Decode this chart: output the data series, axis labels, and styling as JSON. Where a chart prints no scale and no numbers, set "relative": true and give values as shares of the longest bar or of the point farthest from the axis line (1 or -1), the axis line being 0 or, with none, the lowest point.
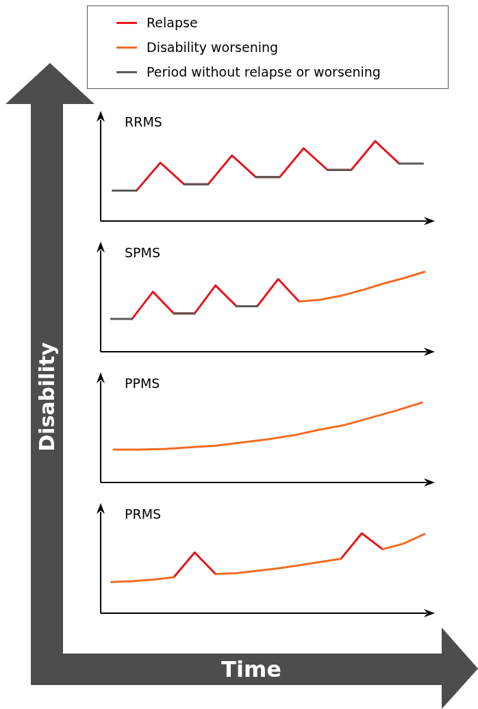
{
  "chart_data": [
    {
      "type": "line",
      "title": "RRMS",
      "ylabel": "Disability",
      "relative": true,
      "legend": "top",
      "categories": [
        null,
        null,
        null,
        null,
        null,
        null,
        null,
        null,
        null,
        null,
        null,
        null,
        null,
        null
      ],
      "series": [
        {
          "name": "Relapse",
          "color": "#e8141c",
          "values": [
            null,
            0.38,
            0.73,
            0.46,
            0.46,
            0.82,
            0.55,
            0.55,
            0.91,
            0.64,
            0.64,
            1,
            0.72,
            null
          ]
        },
        {
          "name": "Disability worsening",
          "color": "#f26c21",
          "values": [
            null,
            null,
            null,
            null,
            null,
            null,
            null,
            null,
            null,
            null,
            null,
            null,
            null,
            null
          ]
        },
        {
          "name": "Period without relapse or worsening",
          "color": "#595959",
          "values": [
            0.38,
            0.38,
            null,
            0.46,
            0.46,
            null,
            0.55,
            0.55,
            null,
            0.64,
            0.64,
            null,
            0.72,
            0.72
          ]
        }
      ]
    },
    {
      "type": "line",
      "title": "SPMS",
      "relative": true,
      "categories": [
        null,
        null,
        null,
        null,
        null,
        null,
        null,
        null,
        null,
        null,
        null,
        null,
        null,
        null,
        null,
        null
      ],
      "series": [
        {
          "color": "#e8141c",
          "values": [
            null,
            0.41,
            0.75,
            0.48,
            0.48,
            0.83,
            0.57,
            0.57,
            0.91,
            0.63,
            null,
            null,
            null,
            null,
            null,
            null
          ]
        },
        {
          "color": "#f26c21",
          "values": [
            null,
            null,
            null,
            null,
            null,
            null,
            null,
            null,
            null,
            0.63,
            0.65,
            0.7,
            0.77,
            0.85,
            0.92,
            1
          ]
        },
        {
          "color": "#595959",
          "values": [
            0.41,
            0.41,
            null,
            0.48,
            0.48,
            null,
            0.57,
            0.57,
            null,
            null,
            null,
            null,
            null,
            null,
            null,
            null
          ]
        }
      ]
    },
    {
      "type": "line",
      "title": "PPMS",
      "relative": true,
      "categories": [
        null,
        null,
        null,
        null,
        null,
        null,
        null,
        null,
        null,
        null,
        null,
        null,
        null
      ],
      "series": [
        {
          "color": "#f26c21",
          "values": [
            0.41,
            0.41,
            0.42,
            0.44,
            0.46,
            0.5,
            0.54,
            0.59,
            0.66,
            0.72,
            0.81,
            0.9,
            1
          ]
        }
      ]
    },
    {
      "type": "line",
      "title": "PRMS",
      "xlabel": "Time",
      "relative": true,
      "categories": [
        null,
        null,
        null,
        null,
        null,
        null,
        null,
        null,
        null,
        null,
        null,
        null,
        null,
        null,
        null,
        null
      ],
      "series": [
        {
          "color": "#e8141c",
          "values": [
            null,
            null,
            null,
            0.45,
            0.76,
            0.49,
            null,
            null,
            null,
            null,
            null,
            0.68,
            1,
            0.8,
            null,
            null
          ]
        },
        {
          "color": "#f26c21",
          "values": [
            0.39,
            0.4,
            0.42,
            0.45,
            null,
            0.49,
            0.5,
            0.53,
            0.56,
            0.6,
            0.64,
            0.68,
            null,
            0.8,
            0.87,
            0.99
          ]
        }
      ]
    }
  ]
}
